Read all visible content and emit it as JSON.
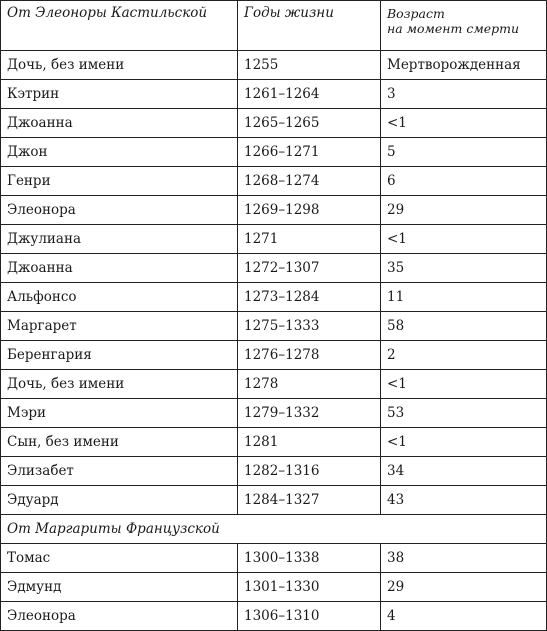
{
  "header": {
    "col1": "От Элеоноры Кастильской",
    "col2": "Годы жизни",
    "col3_line1": "Возраст",
    "col3_line2": "на момент смерти"
  },
  "group1": [
    {
      "name": "Дочь, без имени",
      "years": "1255",
      "age": "Мертворожденная"
    },
    {
      "name": "Кэтрин",
      "years": "1261–1264",
      "age": "3"
    },
    {
      "name": "Джоанна",
      "years": "1265–1265",
      "age": "<1"
    },
    {
      "name": "Джон",
      "years": "1266–1271",
      "age": "5"
    },
    {
      "name": "Генри",
      "years": "1268–1274",
      "age": "6"
    },
    {
      "name": "Элеонора",
      "years": "1269–1298",
      "age": "29"
    },
    {
      "name": "Джулиана",
      "years": "1271",
      "age": "<1"
    },
    {
      "name": "Джоанна",
      "years": "1272–1307",
      "age": "35"
    },
    {
      "name": "Альфонсо",
      "years": "1273–1284",
      "age": "11"
    },
    {
      "name": "Маргарет",
      "years": "1275–1333",
      "age": "58"
    },
    {
      "name": "Беренгария",
      "years": "1276–1278",
      "age": "2"
    },
    {
      "name": "Дочь, без имени",
      "years": "1278",
      "age": "<1"
    },
    {
      "name": "Мэри",
      "years": "1279–1332",
      "age": "53"
    },
    {
      "name": "Сын, без имени",
      "years": "1281",
      "age": "<1"
    },
    {
      "name": "Элизабет",
      "years": "1282–1316",
      "age": "34"
    },
    {
      "name": "Эдуард",
      "years": "1284–1327",
      "age": "43"
    }
  ],
  "section2_title": "От Маргариты Французской",
  "group2": [
    {
      "name": "Томас",
      "years": "1300–1338",
      "age": "38"
    },
    {
      "name": "Эдмунд",
      "years": "1301–1330",
      "age": "29"
    },
    {
      "name": "Элеонора",
      "years": "1306–1310",
      "age": "4"
    }
  ]
}
